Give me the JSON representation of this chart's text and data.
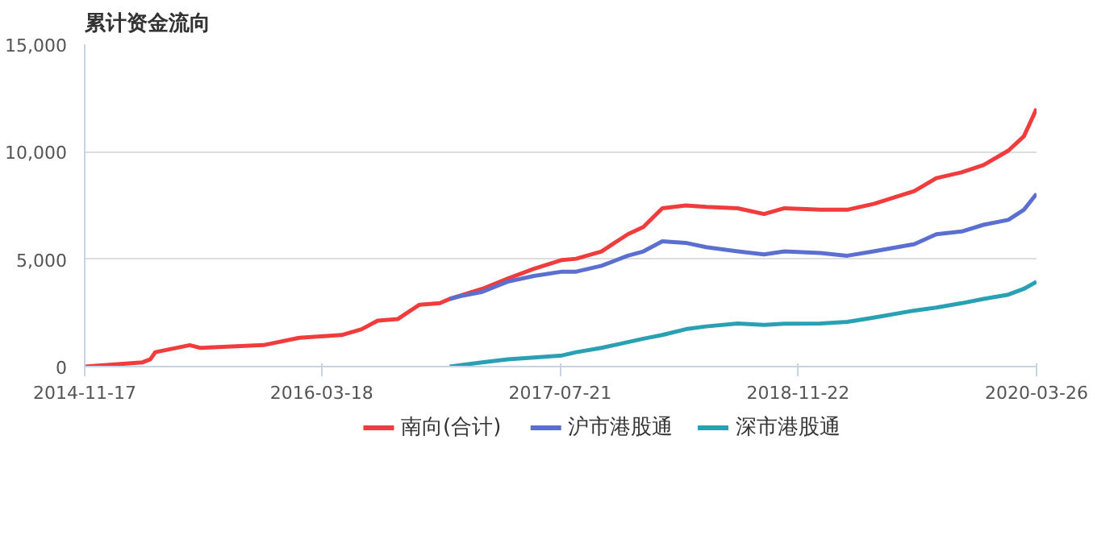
{
  "chart_data": {
    "type": "line",
    "title": "累计资金流向",
    "x": [
      "2014-11-17",
      "2015-03-16",
      "2015-04-01",
      "2015-04-11",
      "2015-06-21",
      "2015-07-13",
      "2015-11-19",
      "2016-02-01",
      "2016-04-28",
      "2016-06-08",
      "2016-07-11",
      "2016-08-21",
      "2016-10-05",
      "2016-11-16",
      "2016-12-06",
      "2016-12-28",
      "2017-02-11",
      "2017-04-04",
      "2017-05-28",
      "2017-07-25",
      "2017-08-23",
      "2017-10-14",
      "2017-12-07",
      "2018-01-08",
      "2018-02-16",
      "2018-04-05",
      "2018-05-17",
      "2018-07-21",
      "2018-09-13",
      "2018-10-25",
      "2019-01-07",
      "2019-03-03",
      "2019-04-26",
      "2019-07-19",
      "2019-09-02",
      "2019-10-24",
      "2019-12-08",
      "2020-01-28",
      "2020-02-29",
      "2020-03-26"
    ],
    "series": [
      {
        "name": "南向(合计)",
        "color": "#f03c3c",
        "values": [
          0,
          200,
          340,
          670,
          1000,
          870,
          1000,
          1340,
          1470,
          1740,
          2140,
          2210,
          2880,
          2950,
          3150,
          3300,
          3620,
          4090,
          4550,
          4960,
          5020,
          5360,
          6160,
          6500,
          7370,
          7500,
          7430,
          7370,
          7100,
          7370,
          7300,
          7300,
          7570,
          8170,
          8770,
          9040,
          9380,
          10050,
          10720,
          12000
        ]
      },
      {
        "name": "沪市港股通",
        "color": "#5b6fd0",
        "values": [
          null,
          null,
          null,
          null,
          null,
          null,
          null,
          null,
          null,
          null,
          null,
          null,
          null,
          null,
          3150,
          3280,
          3480,
          3950,
          4220,
          4420,
          4420,
          4690,
          5160,
          5360,
          5830,
          5760,
          5560,
          5360,
          5220,
          5360,
          5290,
          5160,
          5360,
          5700,
          6160,
          6290,
          6600,
          6830,
          7300,
          8040
        ]
      },
      {
        "name": "深市港股通",
        "color": "#2aa0b4",
        "values": [
          null,
          null,
          null,
          null,
          null,
          null,
          null,
          null,
          null,
          null,
          null,
          null,
          null,
          null,
          0,
          70,
          200,
          340,
          420,
          520,
          670,
          870,
          1140,
          1300,
          1470,
          1740,
          1870,
          2010,
          1940,
          2000,
          2010,
          2080,
          2280,
          2610,
          2750,
          2950,
          3150,
          3350,
          3620,
          3950
        ]
      }
    ],
    "xlim": [
      "2014-11-17",
      "2020-03-26"
    ],
    "xticks": [
      "2014-11-17",
      "2016-03-18",
      "2017-07-21",
      "2018-11-22",
      "2020-03-26"
    ],
    "ylim": [
      0,
      15000
    ],
    "yticks": [
      0,
      {
        "value": 5000,
        "label": "5,000"
      },
      {
        "value": 10000,
        "label": "10,000"
      },
      {
        "value": 15000,
        "label": "15,000"
      }
    ],
    "grid": "y",
    "legend": "bottom",
    "marker": "none",
    "line_style": "solid"
  }
}
